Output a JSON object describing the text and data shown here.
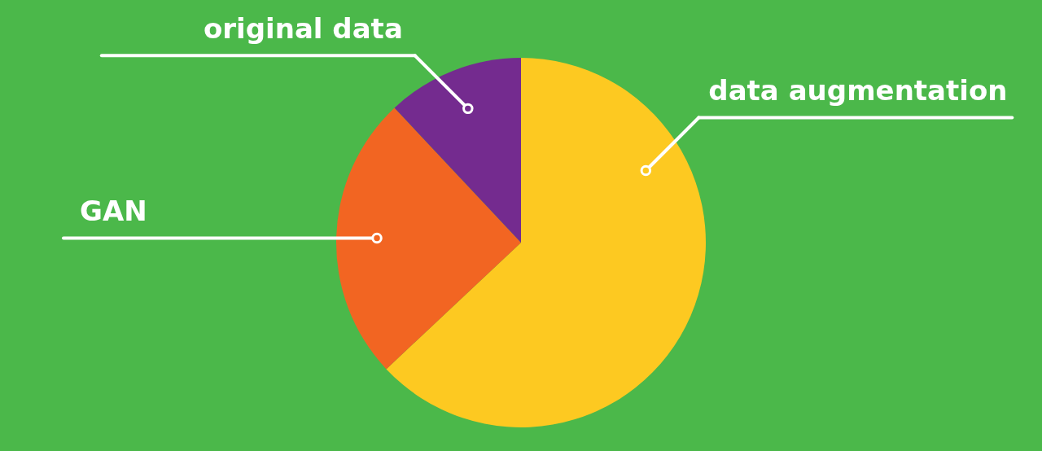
{
  "chart_data": {
    "type": "pie",
    "categories": [
      "data augmentation",
      "GAN",
      "original data"
    ],
    "values": [
      63,
      25,
      12
    ],
    "colors": [
      "#fdc921",
      "#f26522",
      "#742b8f"
    ]
  }
}
